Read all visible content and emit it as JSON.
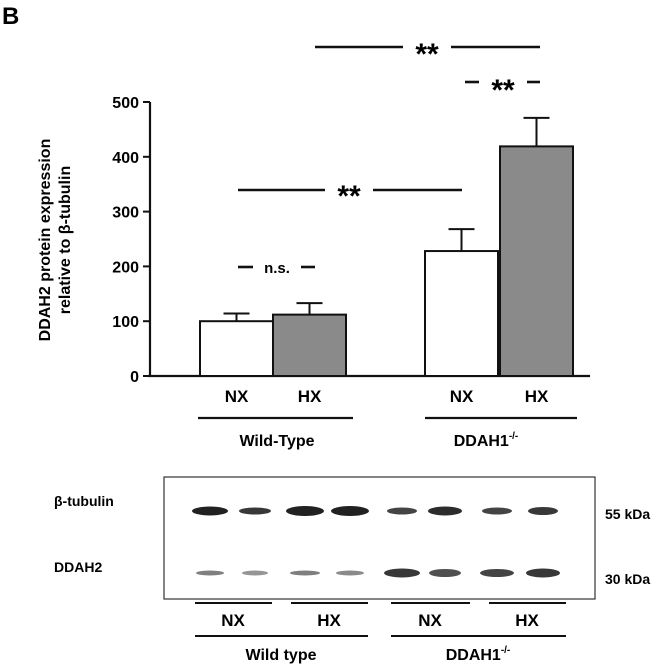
{
  "panel_label": "B",
  "chart_data": {
    "type": "bar",
    "title": "",
    "ylabel": [
      "DDAH2 protein expression",
      "relative to β-tubulin"
    ],
    "xlabel": "",
    "ylim": [
      0,
      500
    ],
    "yticks": [
      0,
      100,
      200,
      300,
      400,
      500
    ],
    "grid": false,
    "groups": [
      {
        "name": "Wild-Type",
        "bars": [
          {
            "label": "NX",
            "value": 100,
            "error": 14,
            "fill": "#ffffff"
          },
          {
            "label": "HX",
            "value": 112,
            "error": 21,
            "fill": "#8a8a8a"
          }
        ]
      },
      {
        "name": "DDAH1",
        "name_sup": "-/-",
        "bars": [
          {
            "label": "NX",
            "value": 228,
            "error": 40,
            "fill": "#ffffff"
          },
          {
            "label": "HX",
            "value": 419,
            "error": 52,
            "fill": "#8a8a8a"
          }
        ]
      }
    ],
    "annotations": [
      {
        "text": "n.s.",
        "between": "Wild-Type NX vs Wild-Type HX"
      },
      {
        "text": "**",
        "between": "Wild-Type NX vs DDAH1-/- NX"
      },
      {
        "text": "**",
        "between": "DDAH1-/- NX vs DDAH1-/- HX"
      },
      {
        "text": "**",
        "between": "Wild-Type HX vs DDAH1-/- HX"
      }
    ]
  },
  "blot": {
    "rows": [
      {
        "label": "β-tubulin",
        "size": "55 kDa"
      },
      {
        "label": "DDAH2",
        "size": "30 kDa"
      }
    ],
    "condition_labels": [
      "NX",
      "HX",
      "NX",
      "HX"
    ],
    "group_labels": [
      {
        "name": "Wild type",
        "sup": ""
      },
      {
        "name": "DDAH1",
        "sup": "-/-"
      }
    ]
  },
  "colors": {
    "bar_nx": "#ffffff",
    "bar_hx": "#8a8a8a",
    "ink": "#111111"
  }
}
